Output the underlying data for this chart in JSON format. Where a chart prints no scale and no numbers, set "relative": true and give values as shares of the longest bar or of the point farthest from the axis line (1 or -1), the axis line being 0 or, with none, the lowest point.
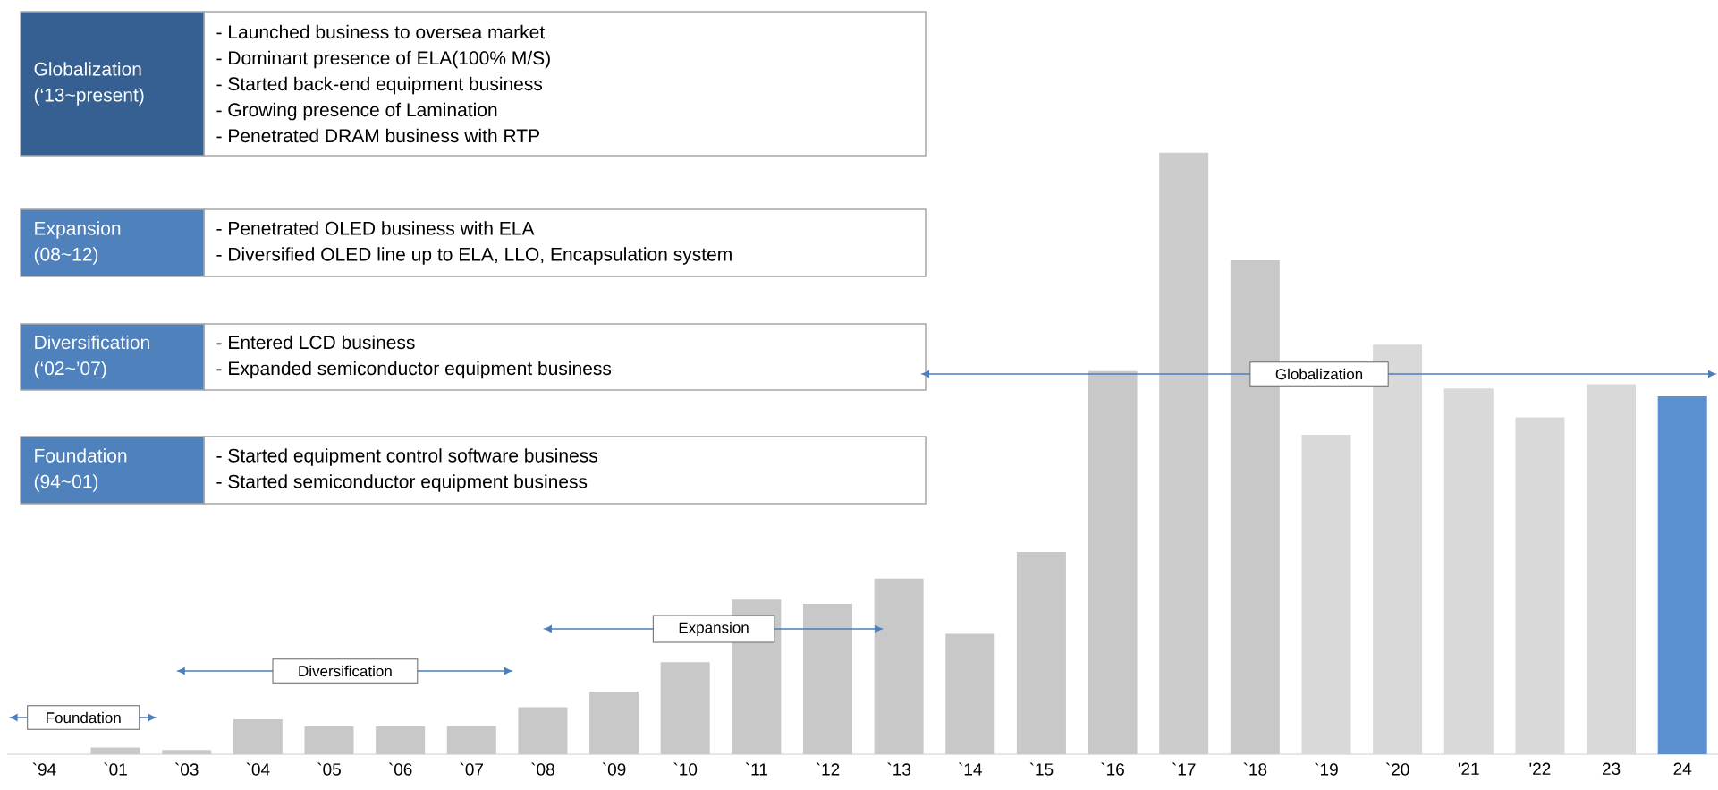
{
  "chart_data": {
    "type": "bar",
    "relative": true,
    "categories": [
      "`94",
      "`01",
      "`03",
      "`04",
      "`05",
      "`06",
      "`07",
      "`08",
      "`09",
      "`10",
      "`11",
      "`12",
      "`13",
      "`14",
      "`15",
      "`16",
      "`17",
      "`18",
      "`19",
      "`20",
      "'21",
      "'22",
      "23",
      "24"
    ],
    "values": [
      0,
      0.011,
      0.007,
      0.058,
      0.046,
      0.046,
      0.047,
      0.078,
      0.104,
      0.153,
      0.257,
      0.25,
      0.292,
      0.2,
      0.336,
      0.637,
      1,
      0.821,
      0.531,
      0.681,
      0.608,
      0.56,
      0.615,
      0.595
    ],
    "colors": [
      "#c8c8c8",
      "#c8c8c8",
      "#c8c8c8",
      "#c8c8c8",
      "#c8c8c8",
      "#c8c8c8",
      "#c8c8c8",
      "#c8c8c8",
      "#c8c8c8",
      "#c8c8c8",
      "#c8c8c8",
      "#c8c8c8",
      "#c8c8c8",
      "#c8c8c8",
      "#c8c8c8",
      "#c8c8c8",
      "#cccccc",
      "#c8c8c8",
      "#d9d9d9",
      "#d9d9d9",
      "#d9d9d9",
      "#d9d9d9",
      "#d9d9d9",
      "#5b8fcf"
    ],
    "annotations": [
      "Globalization",
      "(‘13~present)",
      "-   Launched business to oversea market",
      "-   Dominant presence of ELA(100% M/S)",
      "-   Started back-end equipment business",
      "-   Growing presence of Lamination",
      "-   Penetrated DRAM business with RTP",
      "Expansion",
      "(08~12)",
      "-   Penetrated OLED business with ELA",
      "-   Diversified OLED line up to ELA, LLO, Encapsulation system",
      "Diversification",
      "(‘02~’07)",
      "-   Entered LCD business",
      "-   Expanded semiconductor equipment business",
      "Foundation",
      "(94~01)",
      "-   Started equipment control software business",
      "-   Started semiconductor equipment business",
      "Foundation",
      "Diversification",
      "Expansion",
      "Globalization"
    ]
  }
}
